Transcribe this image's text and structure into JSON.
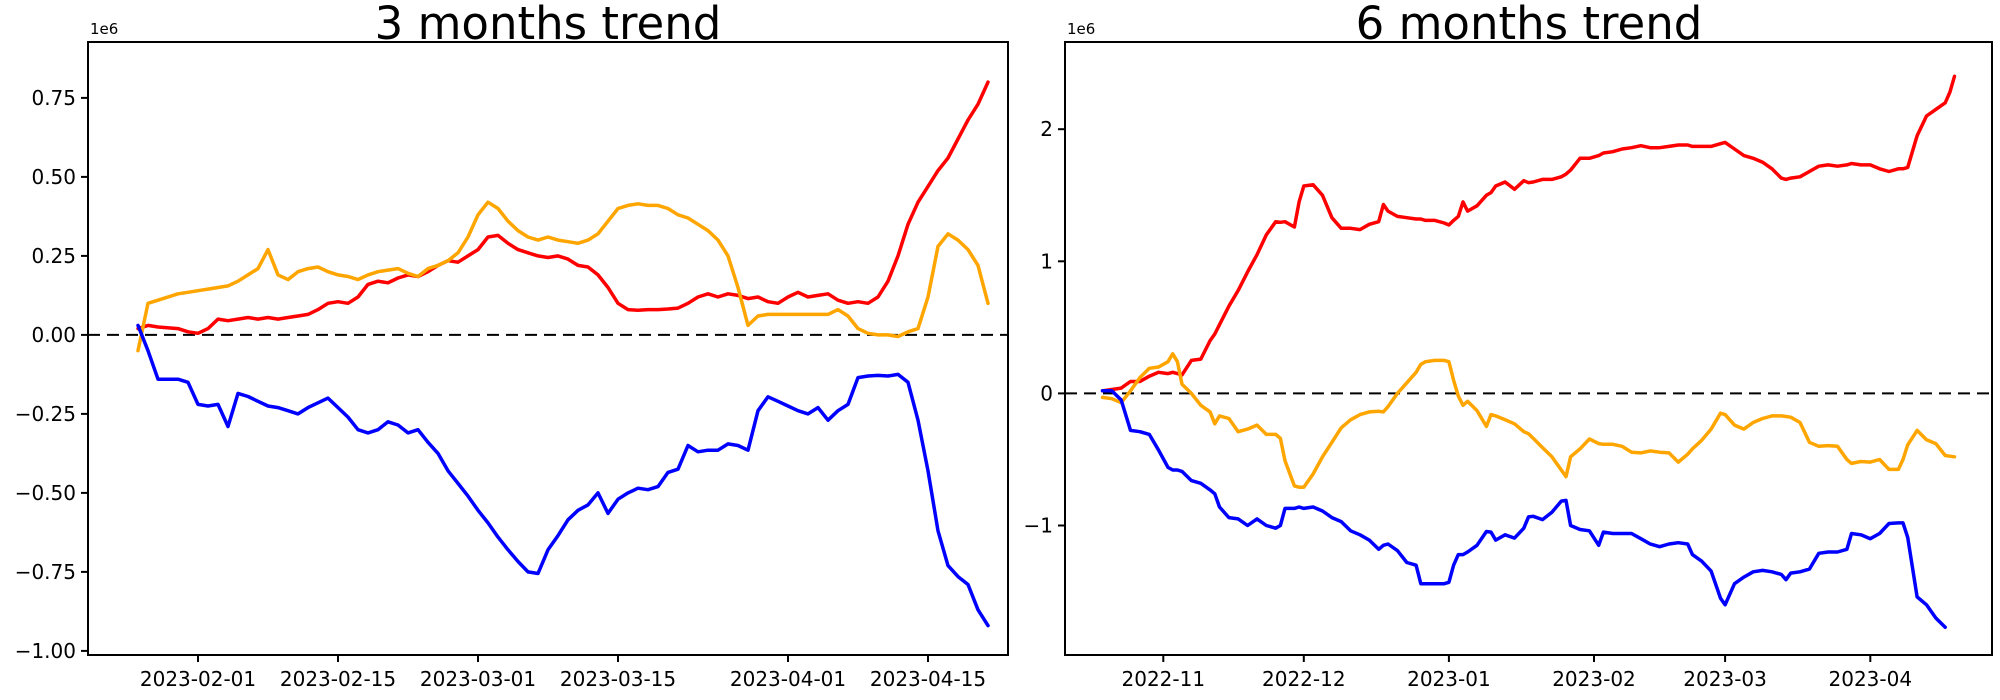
{
  "figure": {
    "background": "#ffffff",
    "text_color": "#000000"
  },
  "chart_data": [
    {
      "type": "line",
      "title": "3 months trend",
      "offset_label": "1e6",
      "values_unit": "1e6",
      "xlabel": "",
      "ylabel": "",
      "grid": false,
      "legend": "none",
      "zero_line": true,
      "xlim": [
        "2023-01-21",
        "2023-04-23"
      ],
      "ylim": [
        -1.013,
        0.927
      ],
      "y_ticks": [
        {
          "v": 0.75,
          "label": "0.75"
        },
        {
          "v": 0.5,
          "label": "0.50"
        },
        {
          "v": 0.25,
          "label": "0.25"
        },
        {
          "v": 0.0,
          "label": "0.00"
        },
        {
          "v": -0.25,
          "label": "−0.25"
        },
        {
          "v": -0.5,
          "label": "−0.50"
        },
        {
          "v": -0.75,
          "label": "−0.75"
        },
        {
          "v": -1.0,
          "label": "−1.00"
        }
      ],
      "x_ticks": [
        {
          "pos": "2023-02-01",
          "label": "2023-02-01"
        },
        {
          "pos": "2023-02-15",
          "label": "2023-02-15"
        },
        {
          "pos": "2023-03-01",
          "label": "2023-03-01"
        },
        {
          "pos": "2023-03-15",
          "label": "2023-03-15"
        },
        {
          "pos": "2023-04-01",
          "label": "2023-04-01"
        },
        {
          "pos": "2023-04-15",
          "label": "2023-04-15"
        }
      ],
      "dates": [
        "2023-01-26",
        "2023-01-27",
        "2023-01-28",
        "2023-01-30",
        "2023-01-31",
        "2023-02-01",
        "2023-02-02",
        "2023-02-03",
        "2023-02-04",
        "2023-02-05",
        "2023-02-06",
        "2023-02-07",
        "2023-02-08",
        "2023-02-09",
        "2023-02-10",
        "2023-02-11",
        "2023-02-12",
        "2023-02-13",
        "2023-02-14",
        "2023-02-15",
        "2023-02-16",
        "2023-02-17",
        "2023-02-18",
        "2023-02-19",
        "2023-02-20",
        "2023-02-21",
        "2023-02-22",
        "2023-02-23",
        "2023-02-24",
        "2023-02-25",
        "2023-02-26",
        "2023-02-27",
        "2023-02-28",
        "2023-03-01",
        "2023-03-02",
        "2023-03-03",
        "2023-03-04",
        "2023-03-05",
        "2023-03-06",
        "2023-03-07",
        "2023-03-08",
        "2023-03-09",
        "2023-03-10",
        "2023-03-11",
        "2023-03-12",
        "2023-03-13",
        "2023-03-14",
        "2023-03-15",
        "2023-03-16",
        "2023-03-17",
        "2023-03-18",
        "2023-03-19",
        "2023-03-20",
        "2023-03-21",
        "2023-03-22",
        "2023-03-23",
        "2023-03-24",
        "2023-03-25",
        "2023-03-26",
        "2023-03-27",
        "2023-03-28",
        "2023-03-29",
        "2023-03-30",
        "2023-03-31",
        "2023-04-01",
        "2023-04-02",
        "2023-04-03",
        "2023-04-04",
        "2023-04-05",
        "2023-04-06",
        "2023-04-07",
        "2023-04-08",
        "2023-04-09",
        "2023-04-10",
        "2023-04-11",
        "2023-04-12",
        "2023-04-13",
        "2023-04-14",
        "2023-04-15",
        "2023-04-16",
        "2023-04-17",
        "2023-04-18",
        "2023-04-19",
        "2023-04-20",
        "2023-04-21"
      ],
      "series": [
        {
          "name": "red",
          "color": "#ff0000",
          "values": [
            0.02,
            0.03,
            0.025,
            0.02,
            0.01,
            0.005,
            0.02,
            0.05,
            0.045,
            0.05,
            0.055,
            0.05,
            0.055,
            0.05,
            0.055,
            0.06,
            0.065,
            0.08,
            0.1,
            0.105,
            0.1,
            0.12,
            0.16,
            0.17,
            0.165,
            0.18,
            0.19,
            0.185,
            0.2,
            0.22,
            0.235,
            0.23,
            0.25,
            0.27,
            0.31,
            0.315,
            0.29,
            0.27,
            0.26,
            0.25,
            0.245,
            0.25,
            0.24,
            0.22,
            0.215,
            0.19,
            0.15,
            0.1,
            0.08,
            0.078,
            0.08,
            0.08,
            0.082,
            0.085,
            0.1,
            0.12,
            0.13,
            0.12,
            0.13,
            0.125,
            0.115,
            0.12,
            0.105,
            0.1,
            0.12,
            0.135,
            0.12,
            0.125,
            0.13,
            0.11,
            0.1,
            0.105,
            0.1,
            0.12,
            0.17,
            0.25,
            0.35,
            0.42,
            0.47,
            0.52,
            0.56,
            0.62,
            0.68,
            0.73,
            0.8
          ]
        },
        {
          "name": "orange",
          "color": "#ffa500",
          "values": [
            -0.05,
            0.1,
            0.11,
            0.13,
            0.135,
            0.14,
            0.145,
            0.15,
            0.155,
            0.17,
            0.19,
            0.21,
            0.27,
            0.19,
            0.175,
            0.2,
            0.21,
            0.215,
            0.2,
            0.19,
            0.185,
            0.175,
            0.19,
            0.2,
            0.205,
            0.21,
            0.195,
            0.185,
            0.21,
            0.22,
            0.235,
            0.26,
            0.31,
            0.38,
            0.42,
            0.4,
            0.36,
            0.33,
            0.31,
            0.3,
            0.31,
            0.3,
            0.295,
            0.29,
            0.3,
            0.32,
            0.36,
            0.4,
            0.41,
            0.415,
            0.41,
            0.41,
            0.4,
            0.38,
            0.37,
            0.35,
            0.33,
            0.3,
            0.25,
            0.15,
            0.03,
            0.06,
            0.065,
            0.065,
            0.065,
            0.065,
            0.065,
            0.065,
            0.065,
            0.08,
            0.06,
            0.02,
            0.005,
            0.0,
            0.0,
            -0.005,
            0.01,
            0.02,
            0.12,
            0.28,
            0.32,
            0.3,
            0.27,
            0.22,
            0.1
          ]
        },
        {
          "name": "blue",
          "color": "#0000ff",
          "values": [
            0.03,
            -0.05,
            -0.14,
            -0.14,
            -0.15,
            -0.22,
            -0.225,
            -0.22,
            -0.29,
            -0.185,
            -0.195,
            -0.21,
            -0.225,
            -0.23,
            -0.24,
            -0.25,
            -0.23,
            -0.215,
            -0.2,
            -0.23,
            -0.26,
            -0.3,
            -0.31,
            -0.3,
            -0.275,
            -0.285,
            -0.31,
            -0.3,
            -0.34,
            -0.375,
            -0.43,
            -0.47,
            -0.51,
            -0.555,
            -0.595,
            -0.64,
            -0.68,
            -0.717,
            -0.75,
            -0.755,
            -0.68,
            -0.635,
            -0.585,
            -0.555,
            -0.538,
            -0.5,
            -0.565,
            -0.52,
            -0.5,
            -0.485,
            -0.49,
            -0.48,
            -0.435,
            -0.425,
            -0.35,
            -0.37,
            -0.365,
            -0.365,
            -0.345,
            -0.35,
            -0.365,
            -0.24,
            -0.196,
            -0.21,
            -0.225,
            -0.24,
            -0.25,
            -0.23,
            -0.27,
            -0.24,
            -0.22,
            -0.135,
            -0.13,
            -0.128,
            -0.13,
            -0.125,
            -0.15,
            -0.27,
            -0.43,
            -0.62,
            -0.73,
            -0.765,
            -0.79,
            -0.87,
            -0.92
          ]
        }
      ]
    },
    {
      "type": "line",
      "title": "6 months trend",
      "offset_label": "1e6",
      "values_unit": "1e6",
      "xlabel": "",
      "ylabel": "",
      "grid": false,
      "legend": "none",
      "zero_line": true,
      "xlim": [
        "2022-10-11",
        "2023-04-27"
      ],
      "ylim": [
        -1.98,
        2.66
      ],
      "y_ticks": [
        {
          "v": 2,
          "label": "2"
        },
        {
          "v": 1,
          "label": "1"
        },
        {
          "v": 0,
          "label": "0"
        },
        {
          "v": -1,
          "label": "−1"
        }
      ],
      "x_ticks": [
        {
          "pos": "2022-11-01",
          "label": "2022-11"
        },
        {
          "pos": "2022-12-01",
          "label": "2022-12"
        },
        {
          "pos": "2023-01-01",
          "label": "2023-01"
        },
        {
          "pos": "2023-02-01",
          "label": "2023-02"
        },
        {
          "pos": "2023-03-01",
          "label": "2023-03"
        },
        {
          "pos": "2023-04-01",
          "label": "2023-04"
        }
      ],
      "dates": [
        "2022-10-19",
        "2022-10-21",
        "2022-10-23",
        "2022-10-25",
        "2022-10-27",
        "2022-10-29",
        "2022-10-31",
        "2022-11-02",
        "2022-11-03",
        "2022-11-04",
        "2022-11-05",
        "2022-11-07",
        "2022-11-09",
        "2022-11-11",
        "2022-11-12",
        "2022-11-13",
        "2022-11-15",
        "2022-11-17",
        "2022-11-19",
        "2022-11-21",
        "2022-11-23",
        "2022-11-25",
        "2022-11-26",
        "2022-11-27",
        "2022-11-29",
        "2022-11-30",
        "2022-12-01",
        "2022-12-03",
        "2022-12-05",
        "2022-12-07",
        "2022-12-09",
        "2022-12-11",
        "2022-12-13",
        "2022-12-15",
        "2022-12-17",
        "2022-12-18",
        "2022-12-19",
        "2022-12-21",
        "2022-12-23",
        "2022-12-25",
        "2022-12-26",
        "2022-12-27",
        "2022-12-29",
        "2022-12-31",
        "2023-01-01",
        "2023-01-02",
        "2023-01-03",
        "2023-01-04",
        "2023-01-05",
        "2023-01-07",
        "2023-01-09",
        "2023-01-10",
        "2023-01-11",
        "2023-01-13",
        "2023-01-15",
        "2023-01-17",
        "2023-01-18",
        "2023-01-19",
        "2023-01-21",
        "2023-01-23",
        "2023-01-25",
        "2023-01-26",
        "2023-01-27",
        "2023-01-29",
        "2023-01-31",
        "2023-02-02",
        "2023-02-03",
        "2023-02-05",
        "2023-02-07",
        "2023-02-09",
        "2023-02-11",
        "2023-02-13",
        "2023-02-15",
        "2023-02-17",
        "2023-02-19",
        "2023-02-21",
        "2023-02-22",
        "2023-02-24",
        "2023-02-26",
        "2023-02-28",
        "2023-03-01",
        "2023-03-03",
        "2023-03-05",
        "2023-03-07",
        "2023-03-09",
        "2023-03-11",
        "2023-03-13",
        "2023-03-14",
        "2023-03-15",
        "2023-03-17",
        "2023-03-19",
        "2023-03-21",
        "2023-03-23",
        "2023-03-25",
        "2023-03-27",
        "2023-03-28",
        "2023-03-30",
        "2023-04-01",
        "2023-04-03",
        "2023-04-05",
        "2023-04-07",
        "2023-04-08",
        "2023-04-09",
        "2023-04-11",
        "2023-04-13",
        "2023-04-15",
        "2023-04-17",
        "2023-04-18",
        "2023-04-19"
      ],
      "series": [
        {
          "name": "red",
          "color": "#ff0000",
          "values": [
            0.02,
            0.03,
            0.04,
            0.09,
            0.09,
            0.13,
            0.16,
            0.15,
            0.16,
            0.15,
            0.14,
            0.25,
            0.26,
            0.4,
            0.45,
            0.52,
            0.66,
            0.78,
            0.92,
            1.05,
            1.2,
            1.3,
            1.295,
            1.3,
            1.26,
            1.45,
            1.57,
            1.58,
            1.5,
            1.33,
            1.25,
            1.25,
            1.24,
            1.28,
            1.3,
            1.43,
            1.38,
            1.34,
            1.33,
            1.32,
            1.32,
            1.31,
            1.31,
            1.29,
            1.275,
            1.31,
            1.34,
            1.45,
            1.38,
            1.42,
            1.5,
            1.52,
            1.57,
            1.6,
            1.545,
            1.61,
            1.595,
            1.6,
            1.62,
            1.62,
            1.64,
            1.66,
            1.69,
            1.78,
            1.78,
            1.8,
            1.82,
            1.83,
            1.85,
            1.86,
            1.875,
            1.86,
            1.86,
            1.87,
            1.88,
            1.88,
            1.87,
            1.87,
            1.87,
            1.89,
            1.9,
            1.85,
            1.8,
            1.78,
            1.75,
            1.7,
            1.63,
            1.62,
            1.63,
            1.64,
            1.68,
            1.72,
            1.73,
            1.72,
            1.73,
            1.74,
            1.73,
            1.73,
            1.7,
            1.68,
            1.7,
            1.7,
            1.71,
            1.95,
            2.1,
            2.15,
            2.2,
            2.28,
            2.4
          ]
        },
        {
          "name": "orange",
          "color": "#ffa500",
          "values": [
            -0.03,
            -0.04,
            -0.07,
            0.02,
            0.12,
            0.19,
            0.2,
            0.24,
            0.3,
            0.24,
            0.07,
            0.0,
            -0.09,
            -0.14,
            -0.23,
            -0.17,
            -0.19,
            -0.29,
            -0.27,
            -0.24,
            -0.31,
            -0.31,
            -0.34,
            -0.51,
            -0.7,
            -0.71,
            -0.71,
            -0.61,
            -0.48,
            -0.37,
            -0.26,
            -0.2,
            -0.16,
            -0.14,
            -0.135,
            -0.14,
            -0.1,
            0.0,
            0.08,
            0.16,
            0.22,
            0.24,
            0.25,
            0.25,
            0.24,
            0.1,
            -0.02,
            -0.09,
            -0.06,
            -0.13,
            -0.25,
            -0.16,
            -0.17,
            -0.2,
            -0.23,
            -0.29,
            -0.305,
            -0.34,
            -0.41,
            -0.48,
            -0.58,
            -0.63,
            -0.48,
            -0.42,
            -0.345,
            -0.38,
            -0.385,
            -0.385,
            -0.4,
            -0.445,
            -0.45,
            -0.435,
            -0.445,
            -0.45,
            -0.52,
            -0.46,
            -0.42,
            -0.355,
            -0.27,
            -0.15,
            -0.16,
            -0.24,
            -0.27,
            -0.22,
            -0.19,
            -0.17,
            -0.17,
            -0.175,
            -0.18,
            -0.22,
            -0.37,
            -0.4,
            -0.395,
            -0.4,
            -0.5,
            -0.53,
            -0.515,
            -0.52,
            -0.5,
            -0.575,
            -0.575,
            -0.5,
            -0.39,
            -0.28,
            -0.35,
            -0.38,
            -0.47,
            -0.475,
            -0.48
          ]
        },
        {
          "name": "blue",
          "color": "#0000ff",
          "values": [
            0.02,
            0.02,
            -0.05,
            -0.28,
            -0.29,
            -0.31,
            -0.43,
            -0.56,
            -0.58,
            -0.58,
            -0.59,
            -0.66,
            -0.68,
            -0.73,
            -0.76,
            -0.86,
            -0.94,
            -0.95,
            -1.0,
            -0.95,
            -1.0,
            -1.02,
            -1.0,
            -0.87,
            -0.87,
            -0.86,
            -0.87,
            -0.86,
            -0.89,
            -0.94,
            -0.97,
            -1.04,
            -1.07,
            -1.11,
            -1.18,
            -1.15,
            -1.14,
            -1.19,
            -1.28,
            -1.3,
            -1.44,
            -1.44,
            -1.44,
            -1.44,
            -1.43,
            -1.3,
            -1.22,
            -1.22,
            -1.2,
            -1.15,
            -1.045,
            -1.05,
            -1.11,
            -1.07,
            -1.095,
            -1.02,
            -0.935,
            -0.93,
            -0.955,
            -0.9,
            -0.815,
            -0.81,
            -1.0,
            -1.03,
            -1.04,
            -1.15,
            -1.05,
            -1.06,
            -1.06,
            -1.06,
            -1.1,
            -1.14,
            -1.16,
            -1.14,
            -1.13,
            -1.14,
            -1.22,
            -1.27,
            -1.345,
            -1.55,
            -1.6,
            -1.44,
            -1.39,
            -1.35,
            -1.34,
            -1.35,
            -1.37,
            -1.41,
            -1.36,
            -1.35,
            -1.33,
            -1.21,
            -1.2,
            -1.2,
            -1.18,
            -1.06,
            -1.07,
            -1.1,
            -1.06,
            -0.985,
            -0.98,
            -0.98,
            -1.09,
            -1.54,
            -1.6,
            -1.7,
            -1.77,
            null,
            null
          ]
        }
      ]
    }
  ]
}
